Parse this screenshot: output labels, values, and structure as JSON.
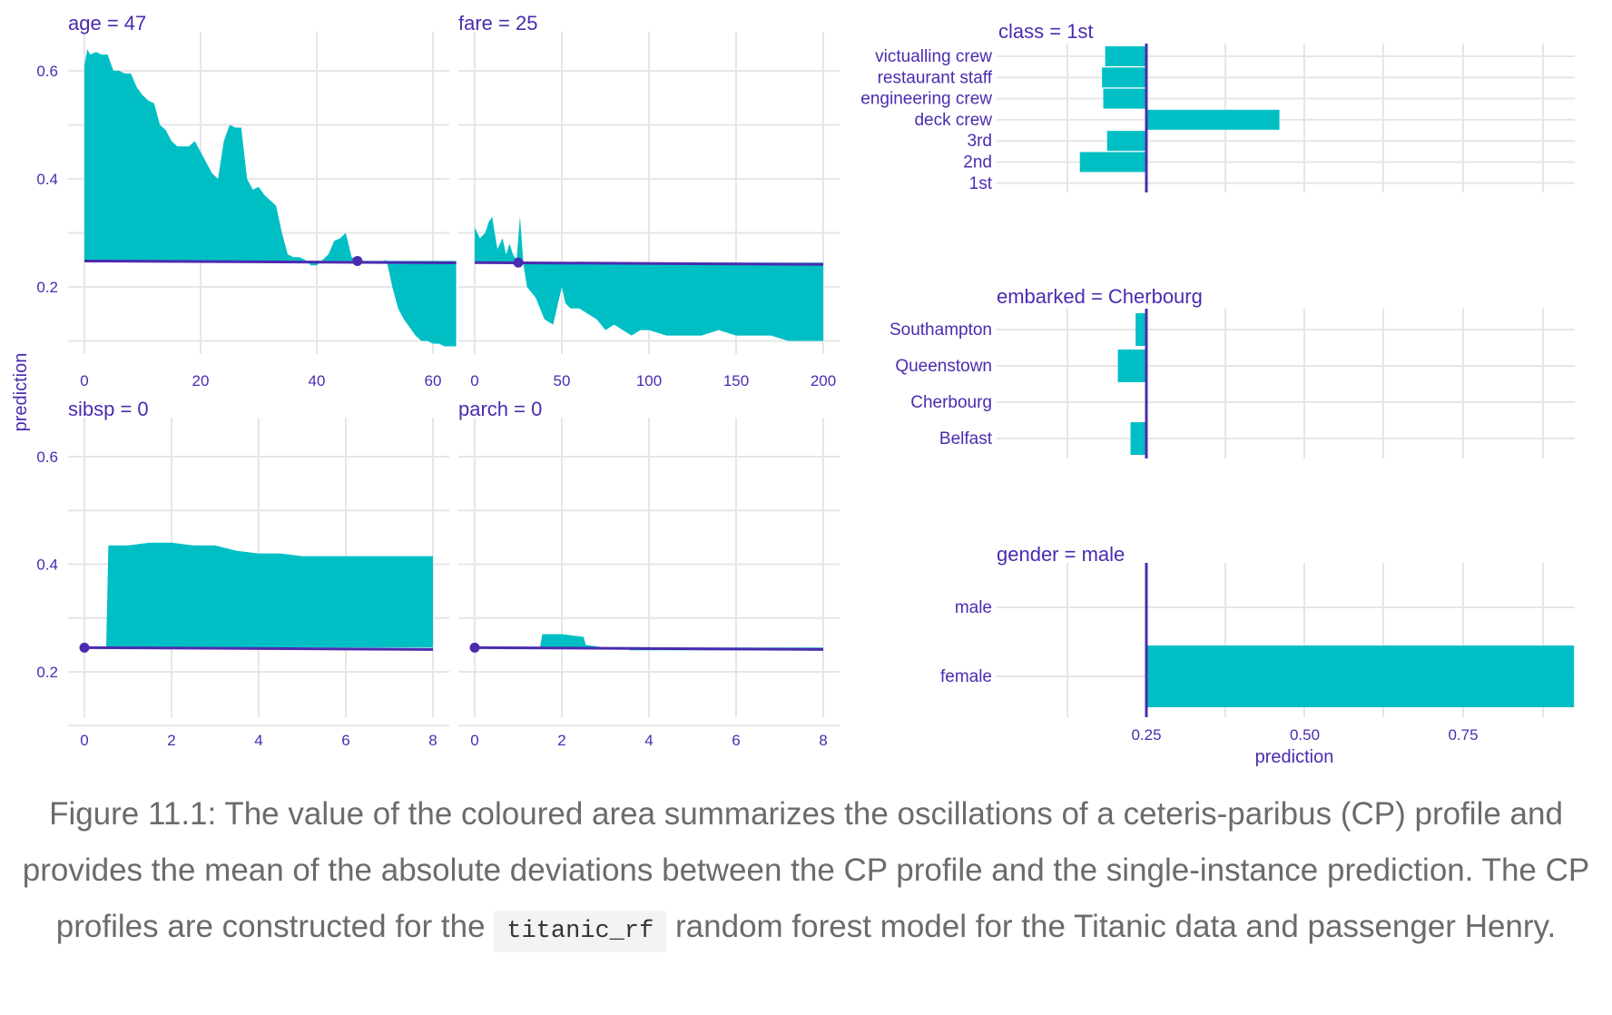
{
  "caption": {
    "before": "Figure 11.1: The value of the coloured area summarizes the oscillations of a ceteris-paribus (CP) profile and provides the mean of the absolute deviations between the CP profile and the single-instance prediction. The CP profiles are constructed for the ",
    "code": "titanic_rf",
    "after": " random forest model for the Titanic data and passenger Henry."
  },
  "axes_titles": {
    "numeric_y": "prediction",
    "categorical_x": "prediction"
  },
  "colors": {
    "area": "#00bfc4",
    "line": "#4b2bb0",
    "text": "#4b2bb0",
    "grid": "#e6e6e6"
  },
  "chart_data": [
    {
      "type": "area",
      "title": "age = 47",
      "xlim": [
        -4,
        65
      ],
      "ylim": [
        0.08,
        0.66
      ],
      "xticks": [
        0,
        20,
        40,
        60
      ],
      "yticks": [
        0.2,
        0.4,
        0.6
      ],
      "show_yticks": true,
      "baseline": 0.248,
      "observation": {
        "x": 47,
        "y": 0.248
      },
      "x": [
        0,
        0.5,
        1,
        2,
        3,
        4,
        5,
        6,
        7,
        8,
        9,
        10,
        11,
        12,
        13,
        14,
        15,
        16,
        17,
        18,
        19,
        20,
        21,
        22,
        23,
        24,
        25,
        26,
        27,
        28,
        29,
        30,
        31,
        32,
        33,
        34,
        35,
        36,
        37,
        38,
        39,
        40,
        41,
        42,
        43,
        44,
        45,
        46,
        47,
        48,
        50,
        52,
        53,
        54,
        55,
        56,
        57,
        58,
        59,
        60,
        61,
        62,
        63,
        64
      ],
      "y": [
        0.61,
        0.64,
        0.63,
        0.635,
        0.63,
        0.63,
        0.6,
        0.6,
        0.595,
        0.595,
        0.57,
        0.555,
        0.545,
        0.54,
        0.5,
        0.49,
        0.47,
        0.46,
        0.46,
        0.46,
        0.47,
        0.45,
        0.43,
        0.41,
        0.4,
        0.47,
        0.5,
        0.495,
        0.495,
        0.4,
        0.38,
        0.385,
        0.37,
        0.36,
        0.35,
        0.3,
        0.26,
        0.255,
        0.255,
        0.25,
        0.24,
        0.24,
        0.25,
        0.26,
        0.285,
        0.29,
        0.3,
        0.255,
        0.25,
        0.245,
        0.245,
        0.25,
        0.2,
        0.16,
        0.14,
        0.125,
        0.11,
        0.1,
        0.1,
        0.095,
        0.095,
        0.09,
        0.09,
        0.09
      ]
    },
    {
      "type": "area",
      "title": "fare = 25",
      "xlim": [
        -5,
        202
      ],
      "ylim": [
        0.08,
        0.66
      ],
      "xticks": [
        0,
        50,
        100,
        150,
        200
      ],
      "yticks": [
        0.2,
        0.4,
        0.6
      ],
      "show_yticks": false,
      "baseline": 0.245,
      "observation": {
        "x": 25,
        "y": 0.245
      },
      "x": [
        0,
        3,
        6,
        8,
        10,
        13,
        16,
        18,
        20,
        22,
        24,
        26,
        28,
        30,
        35,
        40,
        45,
        50,
        52,
        55,
        60,
        65,
        70,
        75,
        80,
        85,
        90,
        95,
        100,
        110,
        120,
        130,
        140,
        150,
        160,
        170,
        180,
        190,
        200
      ],
      "y": [
        0.31,
        0.29,
        0.3,
        0.32,
        0.33,
        0.27,
        0.29,
        0.26,
        0.28,
        0.26,
        0.25,
        0.33,
        0.24,
        0.2,
        0.18,
        0.14,
        0.13,
        0.2,
        0.17,
        0.16,
        0.16,
        0.15,
        0.14,
        0.12,
        0.13,
        0.12,
        0.11,
        0.12,
        0.12,
        0.11,
        0.11,
        0.11,
        0.12,
        0.11,
        0.11,
        0.11,
        0.1,
        0.1,
        0.1
      ]
    },
    {
      "type": "area",
      "title": "sibsp = 0",
      "xlim": [
        -0.4,
        8.3
      ],
      "ylim": [
        0.08,
        0.66
      ],
      "xticks": [
        0,
        2,
        4,
        6,
        8
      ],
      "yticks": [
        0.2,
        0.4,
        0.6
      ],
      "show_yticks": true,
      "baseline": 0.245,
      "observation": {
        "x": 0,
        "y": 0.245
      },
      "x": [
        0,
        0.5,
        0.55,
        1,
        1.5,
        2,
        2.5,
        3,
        3.5,
        4,
        4.5,
        5,
        5.5,
        6,
        6.5,
        7,
        7.5,
        8
      ],
      "y": [
        0.245,
        0.245,
        0.435,
        0.435,
        0.44,
        0.44,
        0.435,
        0.435,
        0.425,
        0.42,
        0.42,
        0.415,
        0.415,
        0.415,
        0.415,
        0.415,
        0.415,
        0.415
      ]
    },
    {
      "type": "area",
      "title": "parch = 0",
      "xlim": [
        -0.4,
        8.3
      ],
      "ylim": [
        0.08,
        0.66
      ],
      "xticks": [
        0,
        2,
        4,
        6,
        8
      ],
      "yticks": [
        0.2,
        0.4,
        0.6
      ],
      "show_yticks": false,
      "baseline": 0.245,
      "observation": {
        "x": 0,
        "y": 0.245
      },
      "x": [
        0,
        1,
        1.5,
        1.55,
        2,
        2.5,
        2.55,
        3,
        3.5,
        3.55,
        4,
        5,
        6,
        7,
        8
      ],
      "y": [
        0.245,
        0.245,
        0.245,
        0.27,
        0.27,
        0.265,
        0.25,
        0.245,
        0.245,
        0.24,
        0.24,
        0.24,
        0.24,
        0.24,
        0.24
      ]
    },
    {
      "type": "bar",
      "orientation": "horizontal",
      "title": "class = 1st",
      "xlim": [
        0.1,
        0.95
      ],
      "baseline": 0.25,
      "categories": [
        "victualling crew",
        "restaurant staff",
        "engineering crew",
        "deck crew",
        "3rd",
        "2nd",
        "1st"
      ],
      "values": [
        0.185,
        0.18,
        0.182,
        0.46,
        0.188,
        0.145,
        0.25
      ]
    },
    {
      "type": "bar",
      "orientation": "horizontal",
      "title": "embarked = Cherbourg",
      "xlim": [
        0.1,
        0.95
      ],
      "baseline": 0.25,
      "categories": [
        "Southampton",
        "Queenstown",
        "Cherbourg",
        "Belfast"
      ],
      "values": [
        0.233,
        0.205,
        0.25,
        0.225
      ]
    },
    {
      "type": "bar",
      "orientation": "horizontal",
      "title": "gender = male",
      "xlim": [
        0.1,
        0.95
      ],
      "baseline": 0.25,
      "categories": [
        "male",
        "female"
      ],
      "values": [
        0.25,
        0.925
      ],
      "xticks": [
        0.25,
        0.5,
        0.75
      ],
      "xtick_labels": [
        "0.25",
        "0.50",
        "0.75"
      ],
      "show_xticks": true
    }
  ]
}
